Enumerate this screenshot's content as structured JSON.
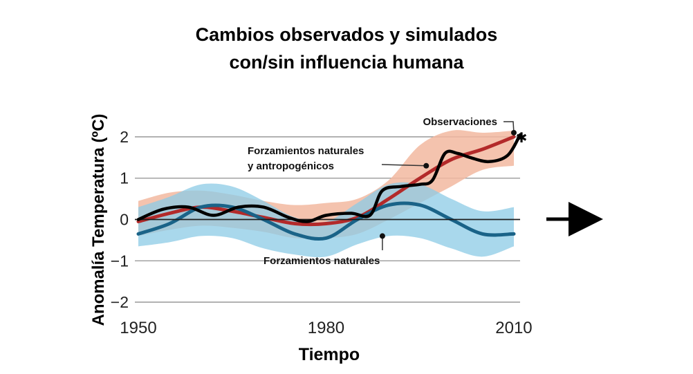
{
  "chart_data": {
    "type": "line",
    "title_lines": [
      "Cambios observados y simulados",
      "con/sin influencia humana"
    ],
    "xlabel": "Tiempo",
    "ylabel": "Anomalía Temperatura (ºC)",
    "xlim": [
      1950,
      2011
    ],
    "ylim": [
      -2.3,
      2.3
    ],
    "x_ticks": [
      1950,
      1980,
      2010
    ],
    "y_ticks": [
      2,
      1,
      0,
      -1,
      -2
    ],
    "y_tick_labels": [
      "2",
      "1",
      "0",
      "−1",
      "−2"
    ],
    "grid": true,
    "zero_line": true,
    "bands": [
      {
        "label": "Forzamientos naturales y antropogénicos",
        "label_lines": [
          "Forzamientos naturales",
          "y antropogénicos"
        ],
        "color": "#f2b8a0",
        "center_color": "#b32a2a",
        "x": [
          1950,
          1955,
          1960,
          1965,
          1970,
          1975,
          1980,
          1985,
          1990,
          1995,
          2000,
          2005,
          2010
        ],
        "upper": [
          0.45,
          0.65,
          0.7,
          0.6,
          0.45,
          0.35,
          0.4,
          0.5,
          0.95,
          1.8,
          2.15,
          2.1,
          2.15
        ],
        "center": [
          -0.05,
          0.15,
          0.3,
          0.2,
          0.05,
          -0.1,
          -0.1,
          0.05,
          0.5,
          1.0,
          1.45,
          1.7,
          2.0
        ],
        "lower": [
          -0.4,
          -0.25,
          -0.15,
          -0.2,
          -0.3,
          -0.45,
          -0.45,
          -0.35,
          0.0,
          0.4,
          0.8,
          1.2,
          1.3
        ]
      },
      {
        "label": "Forzamientos naturales",
        "label_lines": [
          "Forzamientos naturales"
        ],
        "color": "#8ccbe6",
        "center_color": "#1a6388",
        "x": [
          1950,
          1955,
          1960,
          1965,
          1970,
          1975,
          1980,
          1985,
          1990,
          1995,
          2000,
          2005,
          2010
        ],
        "upper": [
          0.3,
          0.55,
          0.85,
          0.8,
          0.45,
          0.05,
          -0.05,
          0.4,
          0.85,
          0.85,
          0.5,
          0.2,
          0.3
        ],
        "center": [
          -0.35,
          -0.1,
          0.3,
          0.3,
          0.0,
          -0.35,
          -0.45,
          0.0,
          0.35,
          0.35,
          0.0,
          -0.35,
          -0.35
        ],
        "lower": [
          -0.65,
          -0.55,
          -0.4,
          -0.45,
          -0.7,
          -0.85,
          -0.9,
          -0.6,
          -0.4,
          -0.45,
          -0.7,
          -0.9,
          -0.65
        ]
      }
    ],
    "series": [
      {
        "name": "Observaciones",
        "color": "#000000",
        "x": [
          1950,
          1954,
          1958,
          1962,
          1966,
          1970,
          1974,
          1977,
          1980,
          1984,
          1987,
          1989,
          1992,
          1995,
          1997,
          1999,
          2001,
          2003,
          2006,
          2009,
          2011
        ],
        "y": [
          0.0,
          0.25,
          0.3,
          0.1,
          0.3,
          0.3,
          0.05,
          -0.05,
          0.1,
          0.15,
          0.1,
          0.7,
          0.8,
          0.85,
          0.95,
          1.6,
          1.6,
          1.5,
          1.4,
          1.55,
          2.05
        ]
      }
    ],
    "annotations": [
      {
        "text": "Observaciones",
        "points_to": {
          "x": 2010,
          "y": 2.1
        }
      },
      {
        "text": "Forzamientos naturales y antropogénicos",
        "points_to": {
          "x": 1996,
          "y": 1.3
        }
      },
      {
        "text": "Forzamientos naturales",
        "points_to": {
          "x": 1989,
          "y": -0.4
        }
      }
    ],
    "arrow": "right"
  }
}
